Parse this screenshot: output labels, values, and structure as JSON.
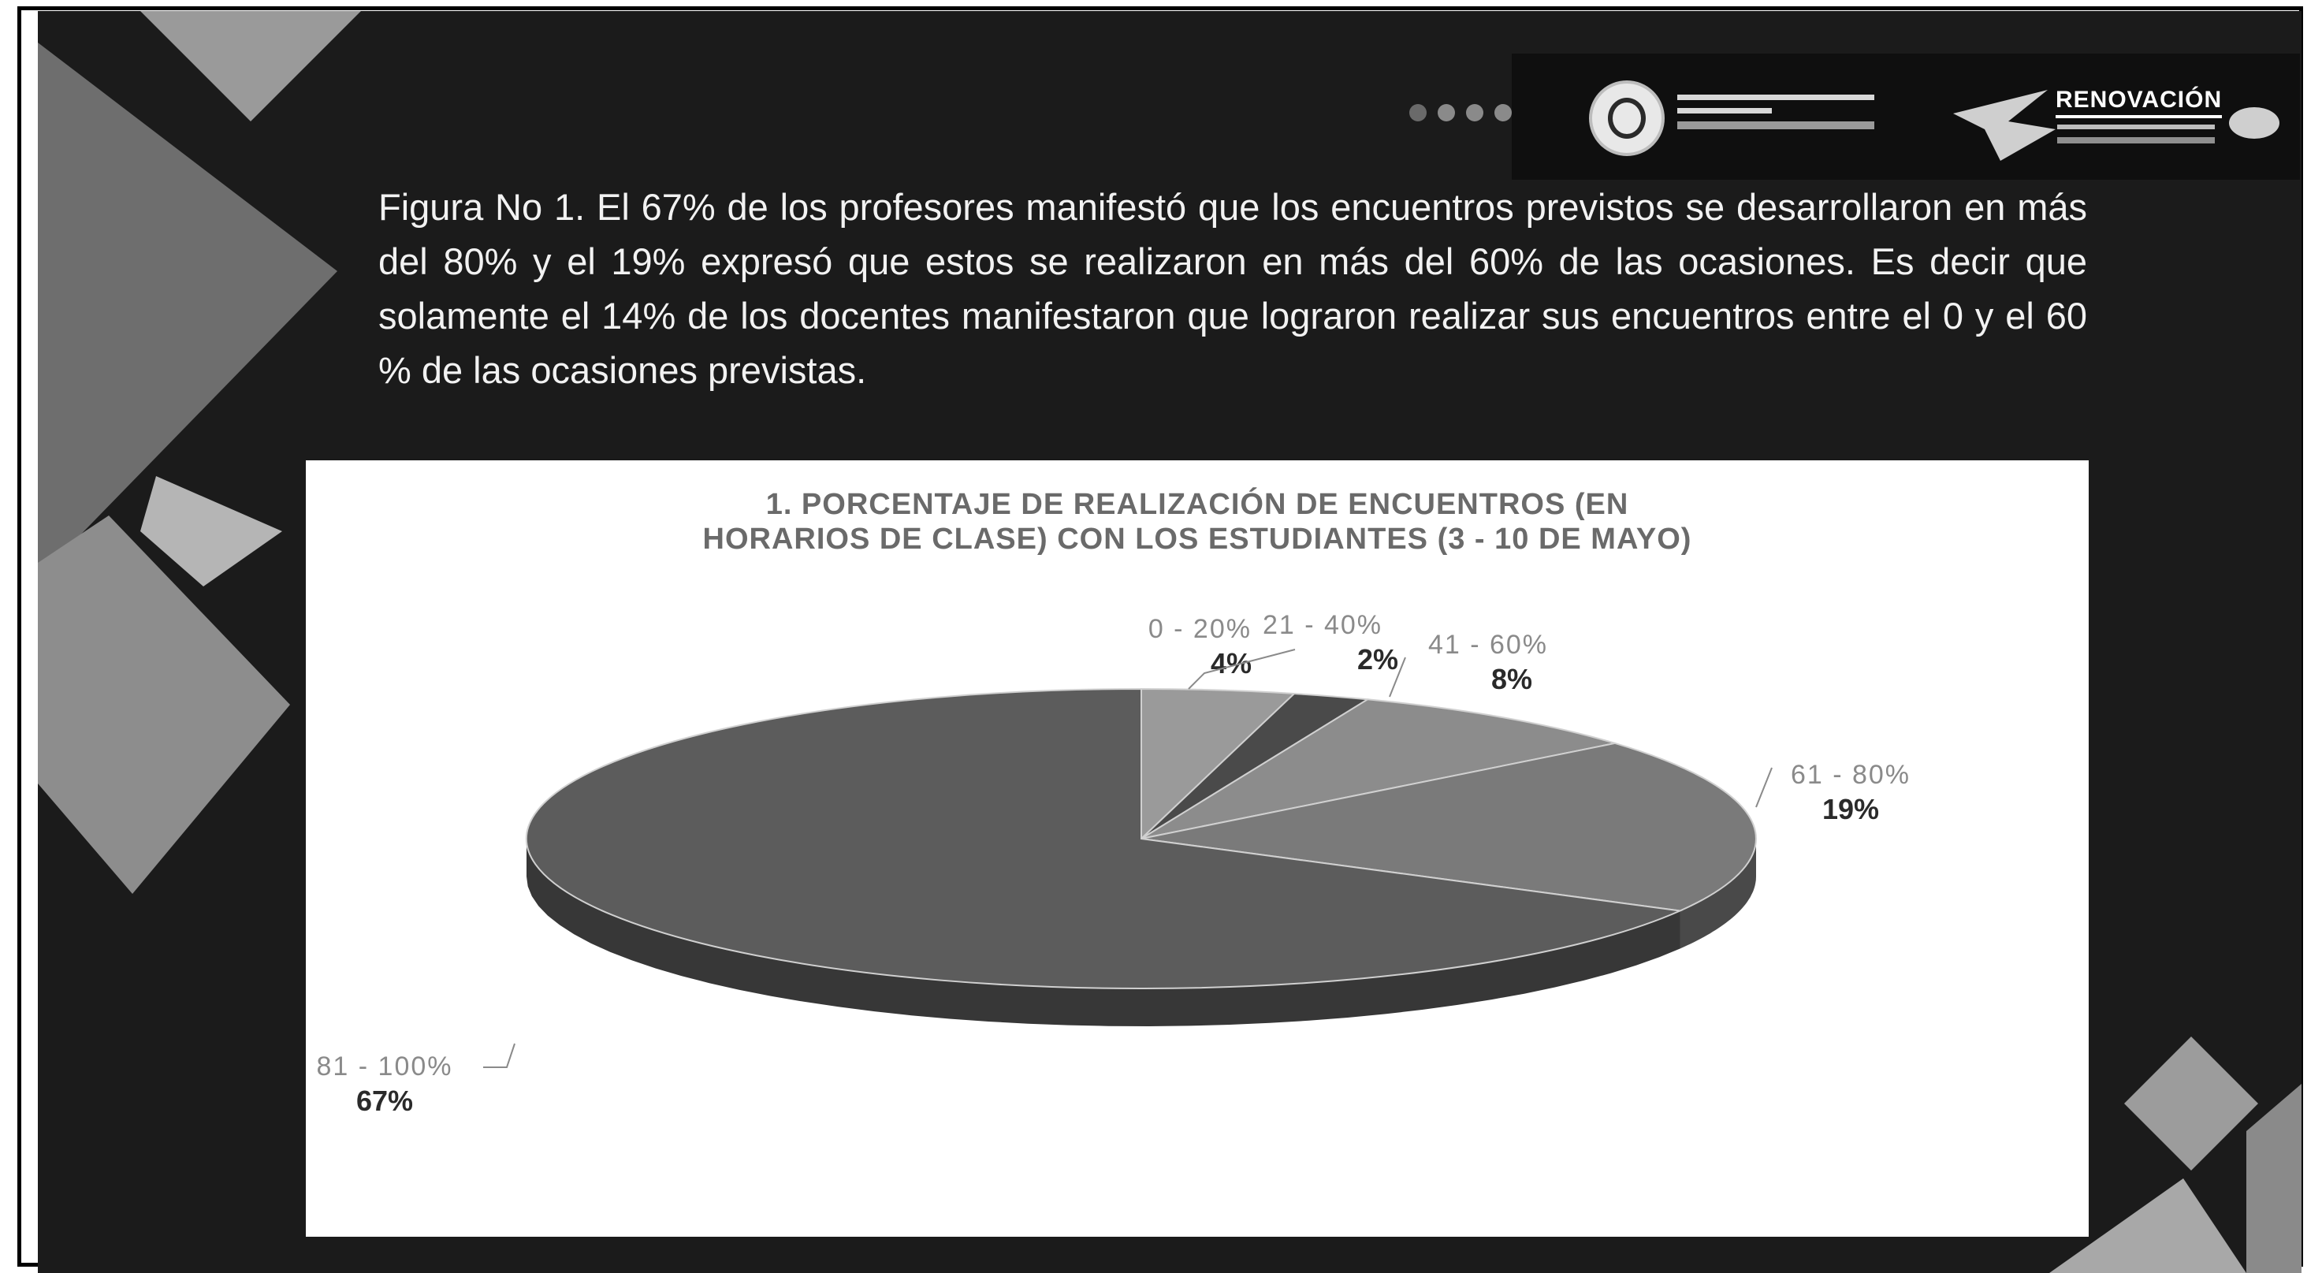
{
  "slide": {
    "description": "Figura No 1. El 67% de los profesores manifestó que los encuentros previstos se desarrollaron en más del 80% y el 19% expresó que estos se realizaron en más del 60% de las ocasiones. Es decir que solamente el 14% de los docentes manifestaron que lograron realizar sus encuentros entre el 0 y el 60 % de las ocasiones previstas.",
    "logos": {
      "upn_icon": "university-seal-icon",
      "renovacion_text": "RENOVACIÓN"
    },
    "pagination": {
      "dot_count": 4
    }
  },
  "chart_data": {
    "type": "pie",
    "title_line1": "1. PORCENTAJE DE REALIZACIÓN  DE ENCUENTROS (EN",
    "title_line2": "HORARIOS DE CLASE) CON LOS ESTUDIANTES (3 - 10 DE MAYO)",
    "slices": [
      {
        "label": "0 - 20%",
        "value": 4,
        "value_label": "4%",
        "color": "#9a9a9a"
      },
      {
        "label": "21 - 40%",
        "value": 2,
        "value_label": "2%",
        "color": "#4a4a4a"
      },
      {
        "label": "41 - 60%",
        "value": 8,
        "value_label": "8%",
        "color": "#8c8c8c"
      },
      {
        "label": "61 - 80%",
        "value": 19,
        "value_label": "19%",
        "color": "#7a7a7a"
      },
      {
        "label": "81 - 100%",
        "value": 67,
        "value_label": "67%",
        "color": "#5c5c5c"
      }
    ],
    "legend": "none"
  }
}
